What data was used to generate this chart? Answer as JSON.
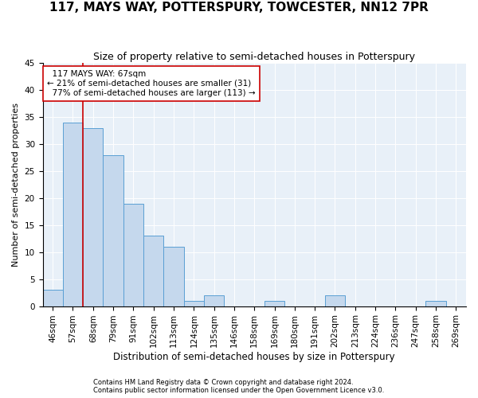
{
  "title": "117, MAYS WAY, POTTERSPURY, TOWCESTER, NN12 7PR",
  "subtitle": "Size of property relative to semi-detached houses in Potterspury",
  "xlabel": "Distribution of semi-detached houses by size in Potterspury",
  "ylabel": "Number of semi-detached properties",
  "bin_labels": [
    "46sqm",
    "57sqm",
    "68sqm",
    "79sqm",
    "91sqm",
    "102sqm",
    "113sqm",
    "124sqm",
    "135sqm",
    "146sqm",
    "158sqm",
    "169sqm",
    "180sqm",
    "191sqm",
    "202sqm",
    "213sqm",
    "224sqm",
    "236sqm",
    "247sqm",
    "258sqm",
    "269sqm"
  ],
  "values": [
    3,
    34,
    33,
    28,
    19,
    13,
    11,
    1,
    2,
    0,
    0,
    1,
    0,
    0,
    2,
    0,
    0,
    0,
    0,
    1,
    0
  ],
  "bar_color": "#c5d8ed",
  "bar_edge_color": "#5a9fd4",
  "vline_color": "#cc0000",
  "annotation_box_color": "#cc0000",
  "bg_color": "#e8f0f8",
  "property_label": "117 MAYS WAY: 67sqm",
  "pct_smaller": 21,
  "count_smaller": 31,
  "pct_larger": 77,
  "count_larger": 113,
  "footer1": "Contains HM Land Registry data © Crown copyright and database right 2024.",
  "footer2": "Contains public sector information licensed under the Open Government Licence v3.0.",
  "ylim": [
    0,
    45
  ],
  "title_fontsize": 11,
  "subtitle_fontsize": 9,
  "tick_fontsize": 7.5,
  "ylabel_fontsize": 8,
  "xlabel_fontsize": 8.5,
  "footer_fontsize": 6,
  "ann_fontsize": 7.5
}
